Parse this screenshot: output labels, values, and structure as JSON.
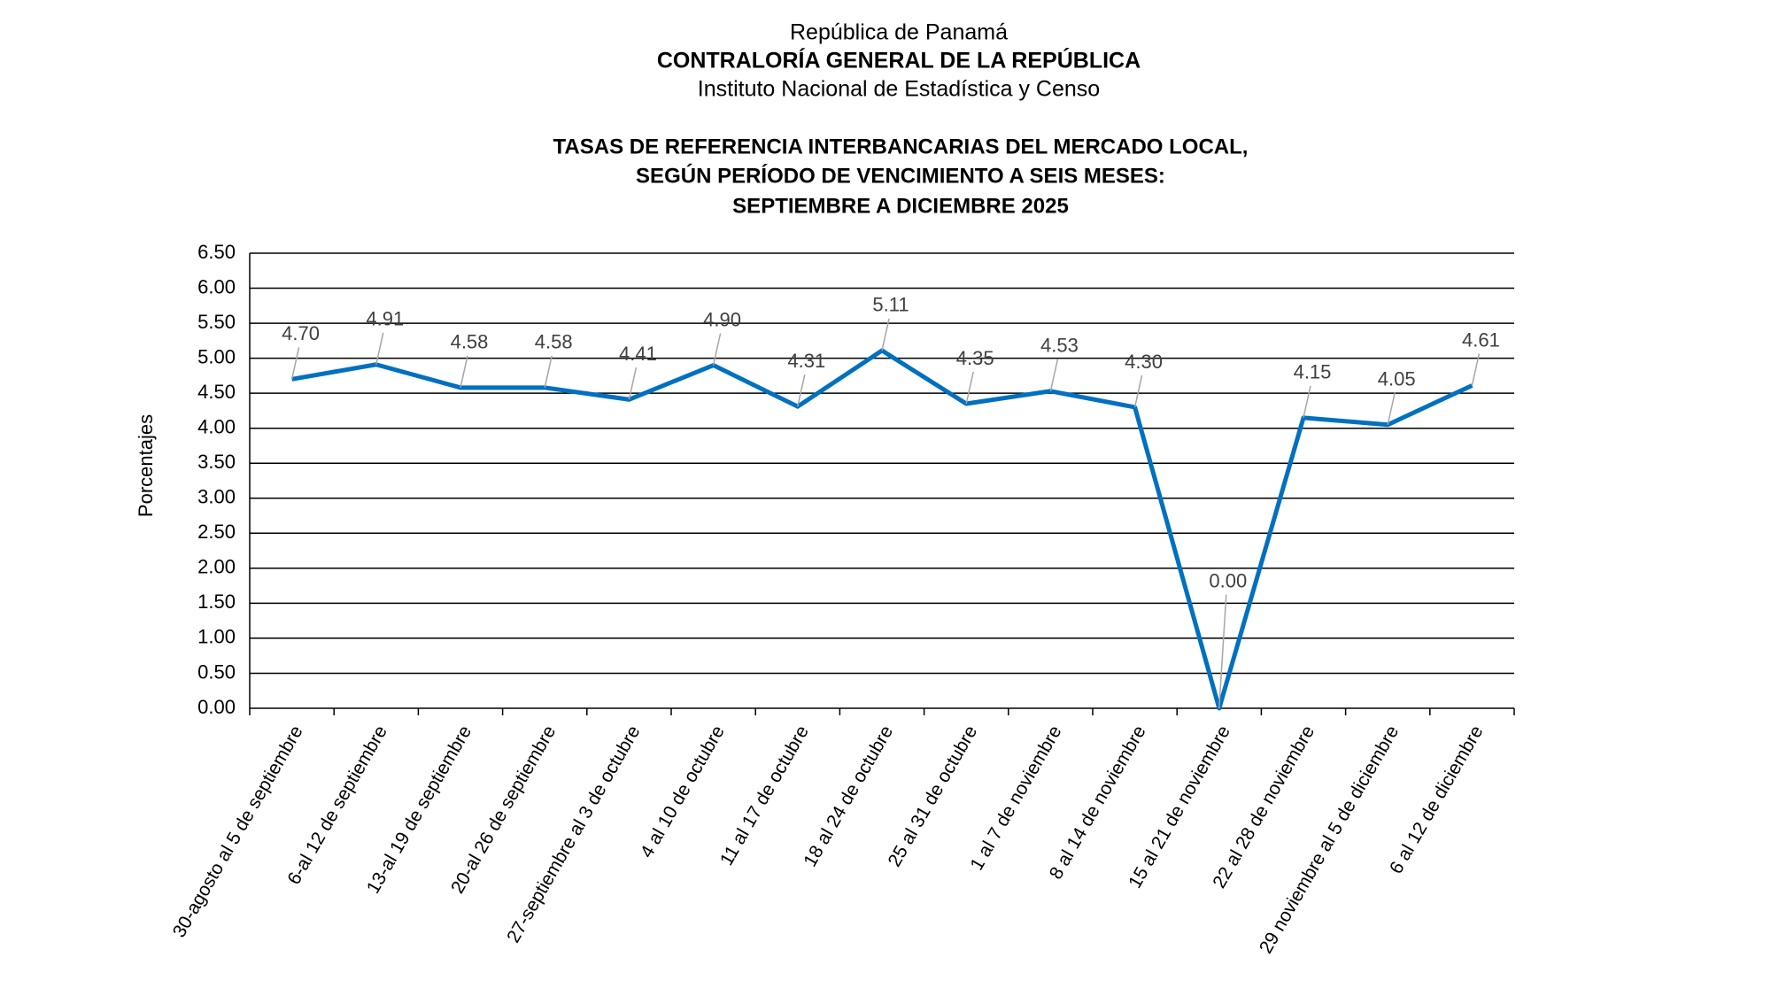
{
  "chart_data": {
    "type": "line",
    "header": [
      "República de Panamá",
      "CONTRALORÍA GENERAL DE LA REPÚBLICA",
      "Instituto Nacional de Estadística y Censo"
    ],
    "title": [
      "TASAS DE REFERENCIA INTERBANCARIAS DEL MERCADO LOCAL,",
      "SEGÚN PERÍODO DE VENCIMIENTO A SEIS MESES:",
      "SEPTIEMBRE A DICIEMBRE 2025"
    ],
    "y_label": "Porcentajes",
    "categories": [
      "30-agosto al 5 de septiembre",
      "6-al 12 de septiembre",
      "13-al 19 de septiembre",
      "20-al 26 de septiembre",
      "27-septiembre al 3 de octubre",
      "4 al 10 de octubre",
      "11 al 17 de octubre",
      "18 al 24 de octubre",
      "25 al 31 de octubre",
      "1 al 7 de noviembre",
      "8 al 14 de noviembre",
      "15 al 21 de noviembre",
      "22 al 28 de noviembre",
      "29 noviembre al 5 de diciembre",
      "6 al 12 de diciembre"
    ],
    "series": [
      {
        "color": "#0070c0",
        "values": [
          4.7,
          4.91,
          4.58,
          4.58,
          4.41,
          4.9,
          4.31,
          5.11,
          4.35,
          4.53,
          4.3,
          0,
          4.15,
          4.05,
          4.61
        ],
        "value_labels": [
          "4.70",
          "4.91",
          "4.58",
          "4.58",
          "4.41",
          "4.90",
          "4.31",
          "5.11",
          "4.35",
          "4.53",
          "4.30",
          "0.00",
          "4.15",
          "4.05",
          "4.61"
        ]
      }
    ],
    "ylim": [
      0,
      6.5
    ],
    "yticks": [
      {
        "value": 0,
        "label": "0.00"
      },
      {
        "value": 0.5,
        "label": "0.50"
      },
      {
        "value": 1,
        "label": "1.00"
      },
      {
        "value": 1.5,
        "label": "1.50"
      },
      {
        "value": 2,
        "label": "2.00"
      },
      {
        "value": 2.5,
        "label": "2.50"
      },
      {
        "value": 3,
        "label": "3.00"
      },
      {
        "value": 3.5,
        "label": "3.50"
      },
      {
        "value": 4,
        "label": "4.00"
      },
      {
        "value": 4.5,
        "label": "4.50"
      },
      {
        "value": 5,
        "label": "5.00"
      },
      {
        "value": 5.5,
        "label": "5.50"
      },
      {
        "value": 6,
        "label": "6.00"
      },
      {
        "value": 6.5,
        "label": "6.50"
      }
    ],
    "grid": true
  }
}
